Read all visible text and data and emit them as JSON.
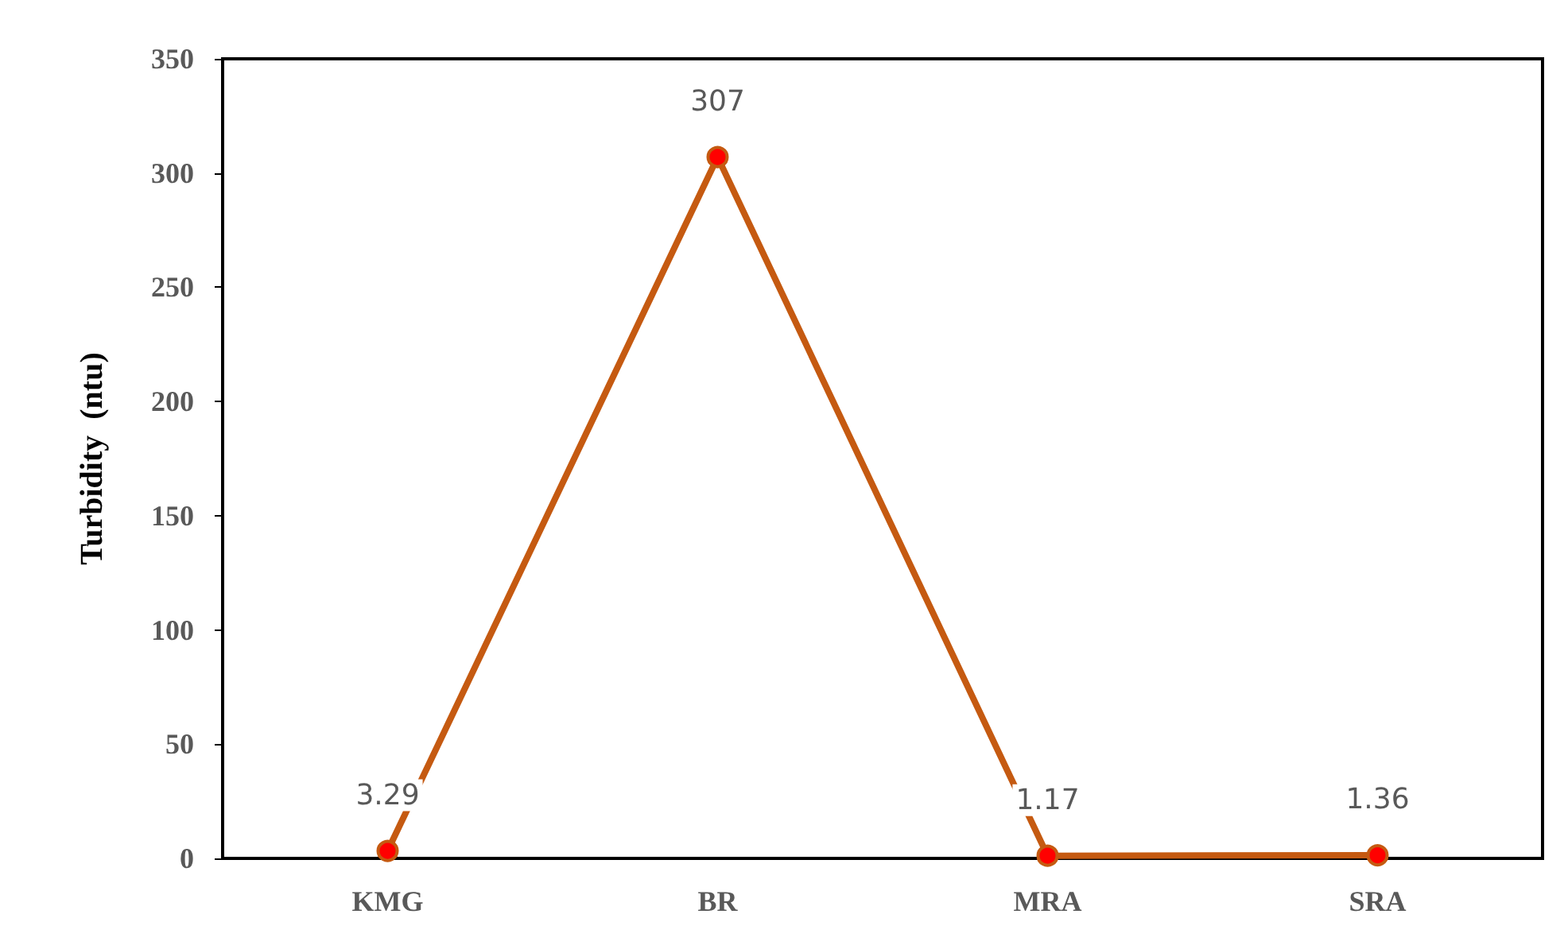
{
  "chart_data": {
    "type": "line",
    "ylabel": "Turbidity  (ntu)",
    "categories": [
      "KMG",
      "BR",
      "MRA",
      "SRA"
    ],
    "series": [
      {
        "color": "#c55a11",
        "values": [
          3.29,
          307,
          1.17,
          1.36
        ]
      }
    ],
    "ylim": [
      0,
      350
    ],
    "yticks": [
      0,
      50,
      100,
      150,
      200,
      250,
      300,
      350
    ],
    "data_labels": true,
    "marker": "circle",
    "line_style": "solid",
    "grid": false
  }
}
